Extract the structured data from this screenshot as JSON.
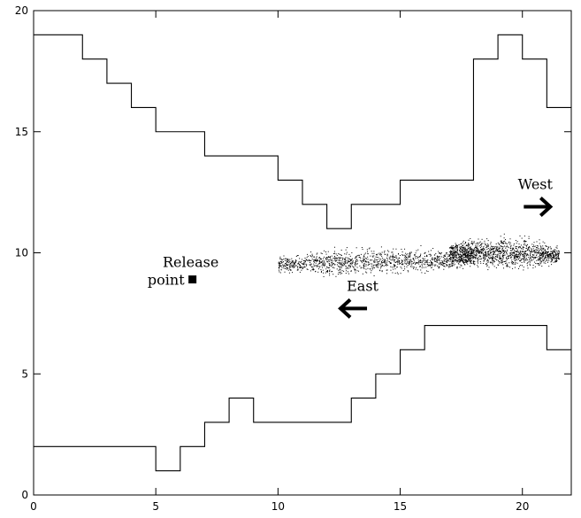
{
  "chart_data": {
    "type": "line",
    "title": "",
    "xlabel": "",
    "ylabel": "",
    "xlim": [
      0,
      22
    ],
    "ylim": [
      0,
      20
    ],
    "xticks": [
      0,
      5,
      10,
      15,
      20
    ],
    "yticks": [
      0,
      5,
      10,
      15,
      20
    ],
    "grid": false,
    "series": [
      {
        "name": "",
        "step": "post",
        "x": [
          0,
          2,
          3,
          4,
          5,
          7,
          10,
          11,
          12,
          13,
          15,
          18,
          19,
          20,
          21,
          22
        ],
        "y": [
          19,
          18,
          17,
          16,
          15,
          14,
          13,
          12,
          11,
          12,
          13,
          18,
          19,
          18,
          16,
          16
        ]
      },
      {
        "name": "",
        "step": "post",
        "x": [
          0,
          5,
          6,
          7,
          8,
          9,
          13,
          14,
          15,
          16,
          21,
          22
        ],
        "y": [
          2,
          1,
          2,
          3,
          4,
          3,
          4,
          5,
          6,
          7,
          6,
          6
        ]
      }
    ],
    "particle_clusters": [
      {
        "x": [
          10.0,
          18.0
        ],
        "y_center": 9.6,
        "y_spread": 0.7
      },
      {
        "x": [
          17.0,
          21.5
        ],
        "y_center": 10.0,
        "y_spread": 0.8
      }
    ],
    "annotations": [
      {
        "id": "release",
        "line1": "Release",
        "line2": "point",
        "marker_x": 6.5,
        "marker_y": 8.9
      },
      {
        "id": "west",
        "text": "West",
        "arrow": "right",
        "x": 20.6,
        "y": 11.9
      },
      {
        "id": "east",
        "text": "East",
        "arrow": "left",
        "x": 13.1,
        "y": 7.7
      }
    ]
  }
}
